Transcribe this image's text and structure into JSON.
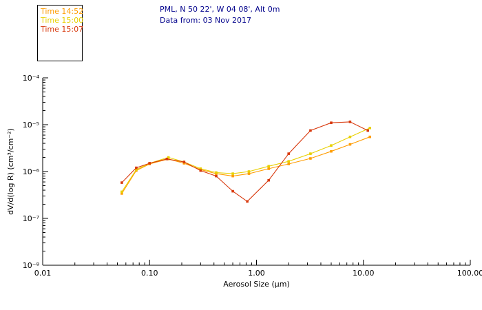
{
  "header": {
    "line1": "PML, N 50 22', W 04 08', Alt 0m",
    "line2": "Data from: 03 Nov 2017",
    "color": "#00008b"
  },
  "legend": {
    "items": [
      {
        "label": "Time 14:52",
        "color": "#ff9c00"
      },
      {
        "label": "Time 15:00",
        "color": "#e8d000"
      },
      {
        "label": "Time 15:07",
        "color": "#d8380c"
      }
    ]
  },
  "chart_data": {
    "type": "line",
    "x_scale": "log",
    "y_scale": "log",
    "title": "",
    "xlabel": "Aerosol Size (μm)",
    "ylabel": "dV/d(log R) (cm³/cm⁻²)",
    "xlim": [
      0.01,
      100
    ],
    "ylim": [
      1e-08,
      0.0001
    ],
    "grid": false,
    "legend_position": "top-left",
    "x_tick_values": [
      0.01,
      0.1,
      1,
      10,
      100
    ],
    "x_tick_labels": [
      "0.01",
      "0.10",
      "1.00",
      "10.00",
      "100.00"
    ],
    "y_tick_values": [
      0.0001,
      1e-05,
      1e-06,
      1e-07,
      1e-08
    ],
    "y_tick_labels": [
      "10⁻⁴",
      "10⁻⁵",
      "10⁻⁶",
      "10⁻⁷",
      "10⁻⁸"
    ],
    "series": [
      {
        "id": "time-1452",
        "name": "Time 14:52",
        "color": "#ff9c00",
        "x": [
          0.055,
          0.075,
          0.1,
          0.15,
          0.21,
          0.3,
          0.42,
          0.6,
          0.85,
          1.3,
          2.0,
          3.2,
          5.0,
          7.5,
          11.5
        ],
        "y": [
          3.4e-07,
          1.05e-06,
          1.45e-06,
          1.85e-06,
          1.5e-06,
          1.1e-06,
          9e-07,
          8e-07,
          9e-07,
          1.15e-06,
          1.45e-06,
          1.9e-06,
          2.7e-06,
          3.8e-06,
          5.5e-06
        ]
      },
      {
        "id": "time-1500",
        "name": "Time 15:00",
        "color": "#e8d000",
        "x": [
          0.055,
          0.075,
          0.1,
          0.15,
          0.21,
          0.3,
          0.42,
          0.6,
          0.85,
          1.3,
          2.0,
          3.2,
          5.0,
          7.5,
          11.5
        ],
        "y": [
          3.7e-07,
          1.1e-06,
          1.5e-06,
          2e-06,
          1.6e-06,
          1.15e-06,
          9.5e-07,
          9e-07,
          1e-06,
          1.3e-06,
          1.65e-06,
          2.4e-06,
          3.6e-06,
          5.5e-06,
          8.5e-06
        ]
      },
      {
        "id": "time-1507",
        "name": "Time 15:07",
        "color": "#d8380c",
        "x": [
          0.055,
          0.075,
          0.1,
          0.145,
          0.21,
          0.3,
          0.42,
          0.6,
          0.82,
          1.3,
          2.0,
          3.2,
          5.0,
          7.5,
          11.0
        ],
        "y": [
          5.8e-07,
          1.2e-06,
          1.5e-06,
          1.85e-06,
          1.6e-06,
          1.05e-06,
          8e-07,
          3.8e-07,
          2.3e-07,
          6.5e-07,
          2.4e-06,
          7.5e-06,
          1.1e-05,
          1.15e-05,
          7.5e-06
        ]
      }
    ]
  }
}
